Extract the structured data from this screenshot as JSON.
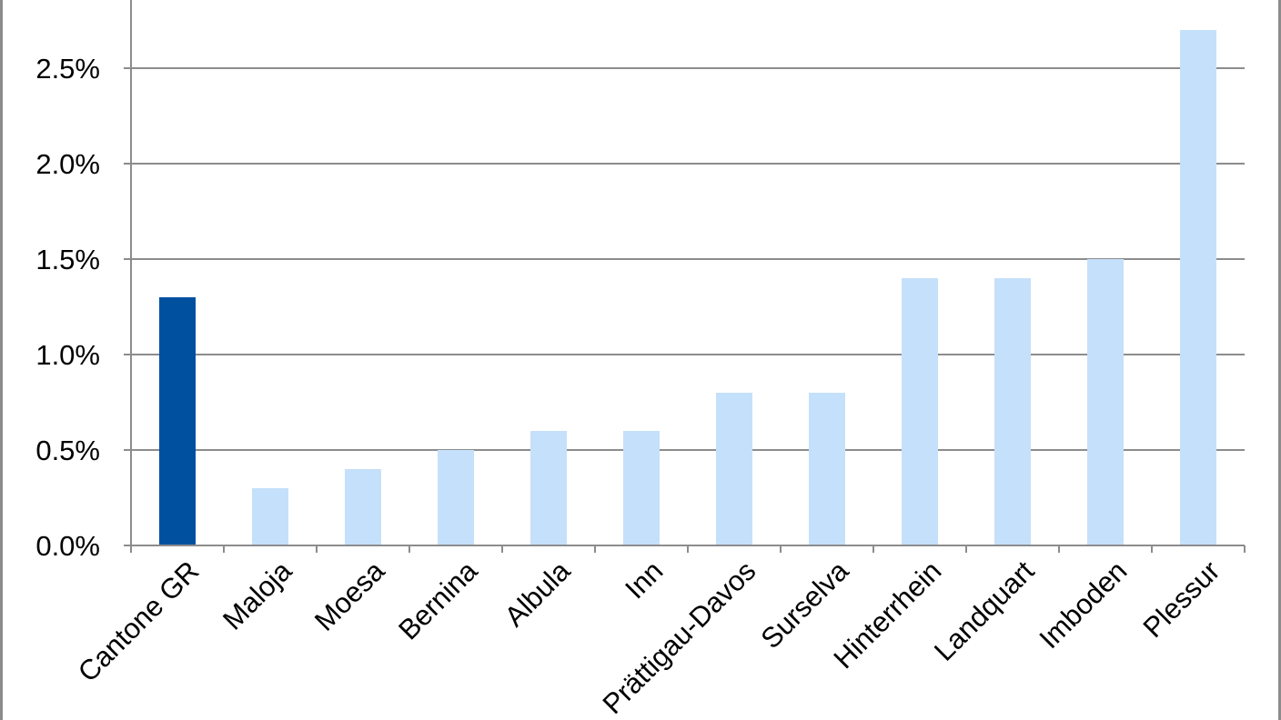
{
  "chart_data": {
    "type": "bar",
    "title": "",
    "xlabel": "",
    "ylabel": "",
    "categories": [
      "Cantone GR",
      "Maloja",
      "Moesa",
      "Bernina",
      "Albula",
      "Inn",
      "Prättigau-Davos",
      "Surselva",
      "Hinterrhein",
      "Landquart",
      "Imboden",
      "Plessur"
    ],
    "values": [
      1.3,
      0.3,
      0.4,
      0.5,
      0.6,
      0.6,
      0.8,
      0.8,
      1.4,
      1.4,
      1.5,
      2.7
    ],
    "highlight_index": 0,
    "ylim": [
      0,
      2.8
    ],
    "yticks": [
      0,
      0.5,
      1.0,
      1.5,
      2.0,
      2.5
    ],
    "ytick_labels": [
      "0.0%",
      "0.5%",
      "1.0%",
      "1.5%",
      "2.0%",
      "2.5%"
    ],
    "grid": true,
    "legend": "none",
    "colors": {
      "highlight": "#0050a0",
      "default": "#c5e0fa",
      "grid": "#8c8c8c",
      "axis": "#8c8c8c"
    }
  }
}
